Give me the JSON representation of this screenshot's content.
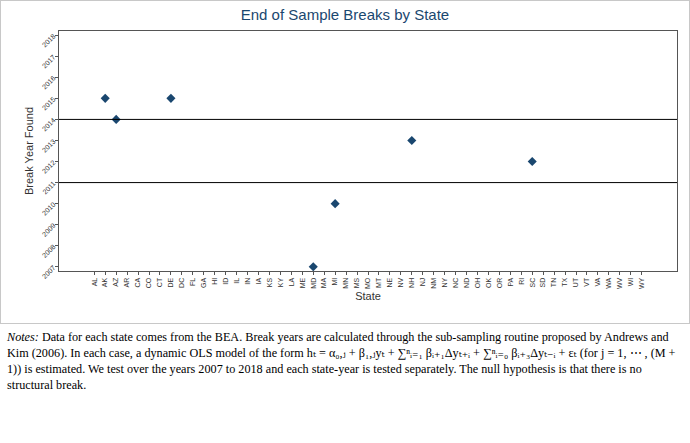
{
  "chart_data": {
    "type": "scatter",
    "title": "End of Sample Breaks by State",
    "x_label": "State",
    "y_label": "Break Year Found",
    "categories": [
      "AL",
      "AK",
      "AZ",
      "AR",
      "CA",
      "CO",
      "CT",
      "DE",
      "DC",
      "FL",
      "GA",
      "HI",
      "ID",
      "IL",
      "IN",
      "IA",
      "KS",
      "KY",
      "LA",
      "ME",
      "MD",
      "MA",
      "MI",
      "MN",
      "MS",
      "MO",
      "MT",
      "NE",
      "NV",
      "NH",
      "NJ",
      "NM",
      "NY",
      "NC",
      "ND",
      "OH",
      "OK",
      "OR",
      "PA",
      "RI",
      "SC",
      "SD",
      "TN",
      "TX",
      "UT",
      "VT",
      "VA",
      "WA",
      "WV",
      "WI",
      "WY"
    ],
    "values": [
      null,
      2015,
      2014,
      null,
      null,
      null,
      null,
      2015,
      null,
      null,
      null,
      null,
      null,
      null,
      null,
      null,
      null,
      null,
      null,
      null,
      2007,
      null,
      2010,
      null,
      null,
      null,
      null,
      null,
      null,
      2013,
      null,
      null,
      null,
      null,
      null,
      null,
      null,
      null,
      null,
      null,
      2012,
      null,
      null,
      null,
      null,
      null,
      null,
      null,
      null,
      null,
      null
    ],
    "color": "#1a476f",
    "marker": "diamond",
    "reference_lines": [
      2011,
      2014
    ],
    "ylim": [
      2006.8,
      2018.2
    ],
    "yticks": [
      2007,
      2008,
      2009,
      2010,
      2011,
      2012,
      2013,
      2014,
      2015,
      2016,
      2017,
      2018
    ],
    "grid": false,
    "notes_label": "Notes:",
    "notes": "Data for each state comes from the BEA. Break years are calculated through the sub-sampling routine proposed by Andrews and Kim (2006). In each case, a dynamic OLS model of the form hₜ = α₀,ⱼ + β₁,ⱼyₜ + ∑ⁿᵢ₌₁ βᵢ₊₁Δyₜ₊ᵢ + ∑ⁿᵢ₌₀ βᵢ₊₃Δyₜ₋ᵢ + εₜ (for j = 1, ⋯ , (M + 1)) is estimated. We test over the years 2007 to 2018 and each state-year is tested separately. The null hypothesis is that there is no structural break."
  }
}
